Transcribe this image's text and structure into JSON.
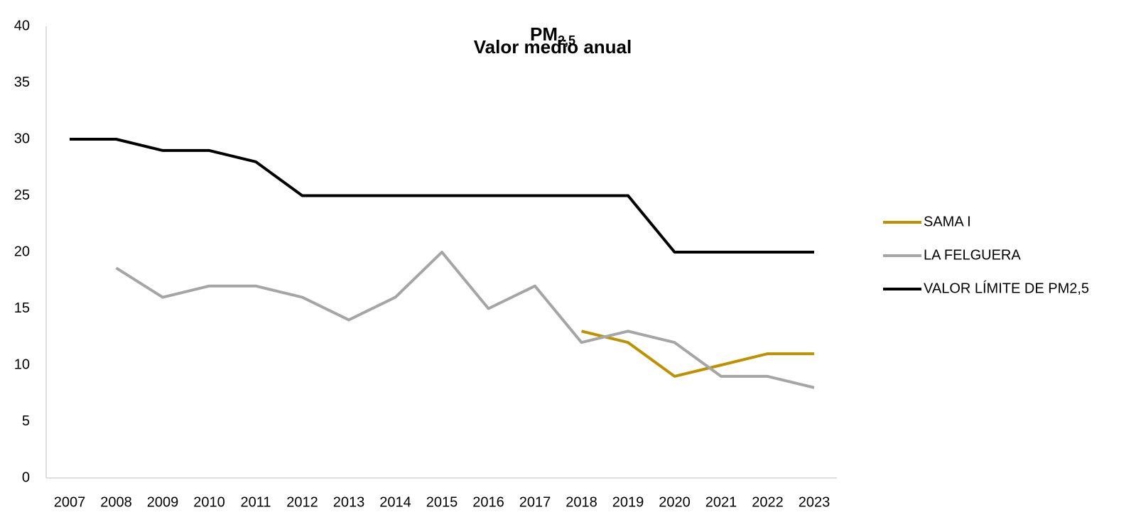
{
  "chart_data": {
    "type": "line",
    "title": {
      "main": "PM",
      "subscript": "2,5"
    },
    "subtitle": "Valor medio anual",
    "categories": [
      "2007",
      "2008",
      "2009",
      "2010",
      "2011",
      "2012",
      "2013",
      "2014",
      "2015",
      "2016",
      "2017",
      "2018",
      "2019",
      "2020",
      "2021",
      "2022",
      "2023"
    ],
    "series": [
      {
        "name": "SAMA I",
        "color": "#bf9000",
        "values": [
          null,
          null,
          null,
          null,
          null,
          null,
          null,
          null,
          null,
          null,
          null,
          13,
          12,
          9,
          10,
          11,
          11
        ]
      },
      {
        "name": "LA FELGUERA",
        "color": "#a5a5a5",
        "values": [
          null,
          18.6,
          16,
          17,
          17,
          16,
          14,
          16,
          20,
          15,
          17,
          12,
          13,
          12,
          9,
          9,
          8
        ]
      },
      {
        "name": "VALOR LÍMITE DE PM2,5",
        "color": "#000000",
        "values": [
          30,
          30,
          29,
          29,
          28,
          25,
          25,
          25,
          25,
          25,
          25,
          25,
          25,
          20,
          20,
          20,
          20
        ]
      }
    ],
    "ylim": [
      0,
      40
    ],
    "yticks": [
      0,
      5,
      10,
      15,
      20,
      25,
      30,
      35,
      40
    ],
    "grid": false,
    "legend": "right"
  }
}
